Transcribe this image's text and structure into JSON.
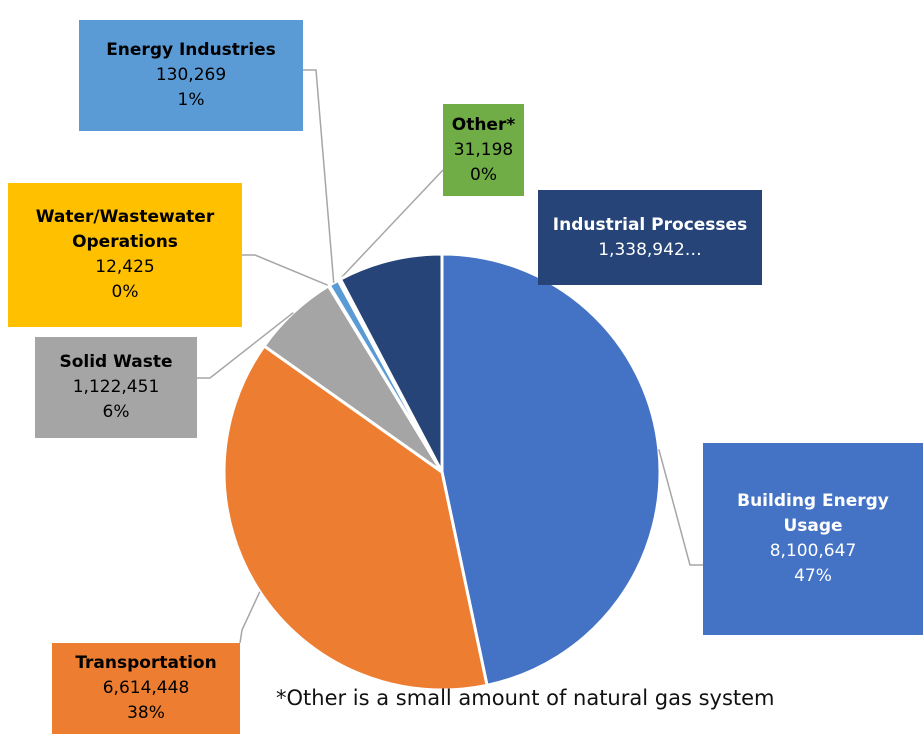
{
  "chart_data": {
    "type": "pie",
    "categories": [
      "Building Energy Usage",
      "Transportation",
      "Solid Waste",
      "Water/Wastewater Operations",
      "Energy Industries",
      "Other*",
      "Industrial Processes"
    ],
    "values": [
      8100647,
      6614448,
      1122451,
      12425,
      130269,
      31198,
      1338942
    ],
    "value_labels": [
      "8,100,647",
      "6,614,448",
      "1,122,451",
      "12,425",
      "130,269",
      "31,198",
      "1,338,942…"
    ],
    "percent_labels": [
      "47%",
      "38%",
      "6%",
      "0%",
      "1%",
      "0%",
      null
    ],
    "colors": [
      "#4472c4",
      "#ed7d31",
      "#a5a5a5",
      "#ffc000",
      "#5b9bd5",
      "#70ad47",
      "#264478"
    ],
    "note": "*Other is a small amount of natural gas system"
  }
}
